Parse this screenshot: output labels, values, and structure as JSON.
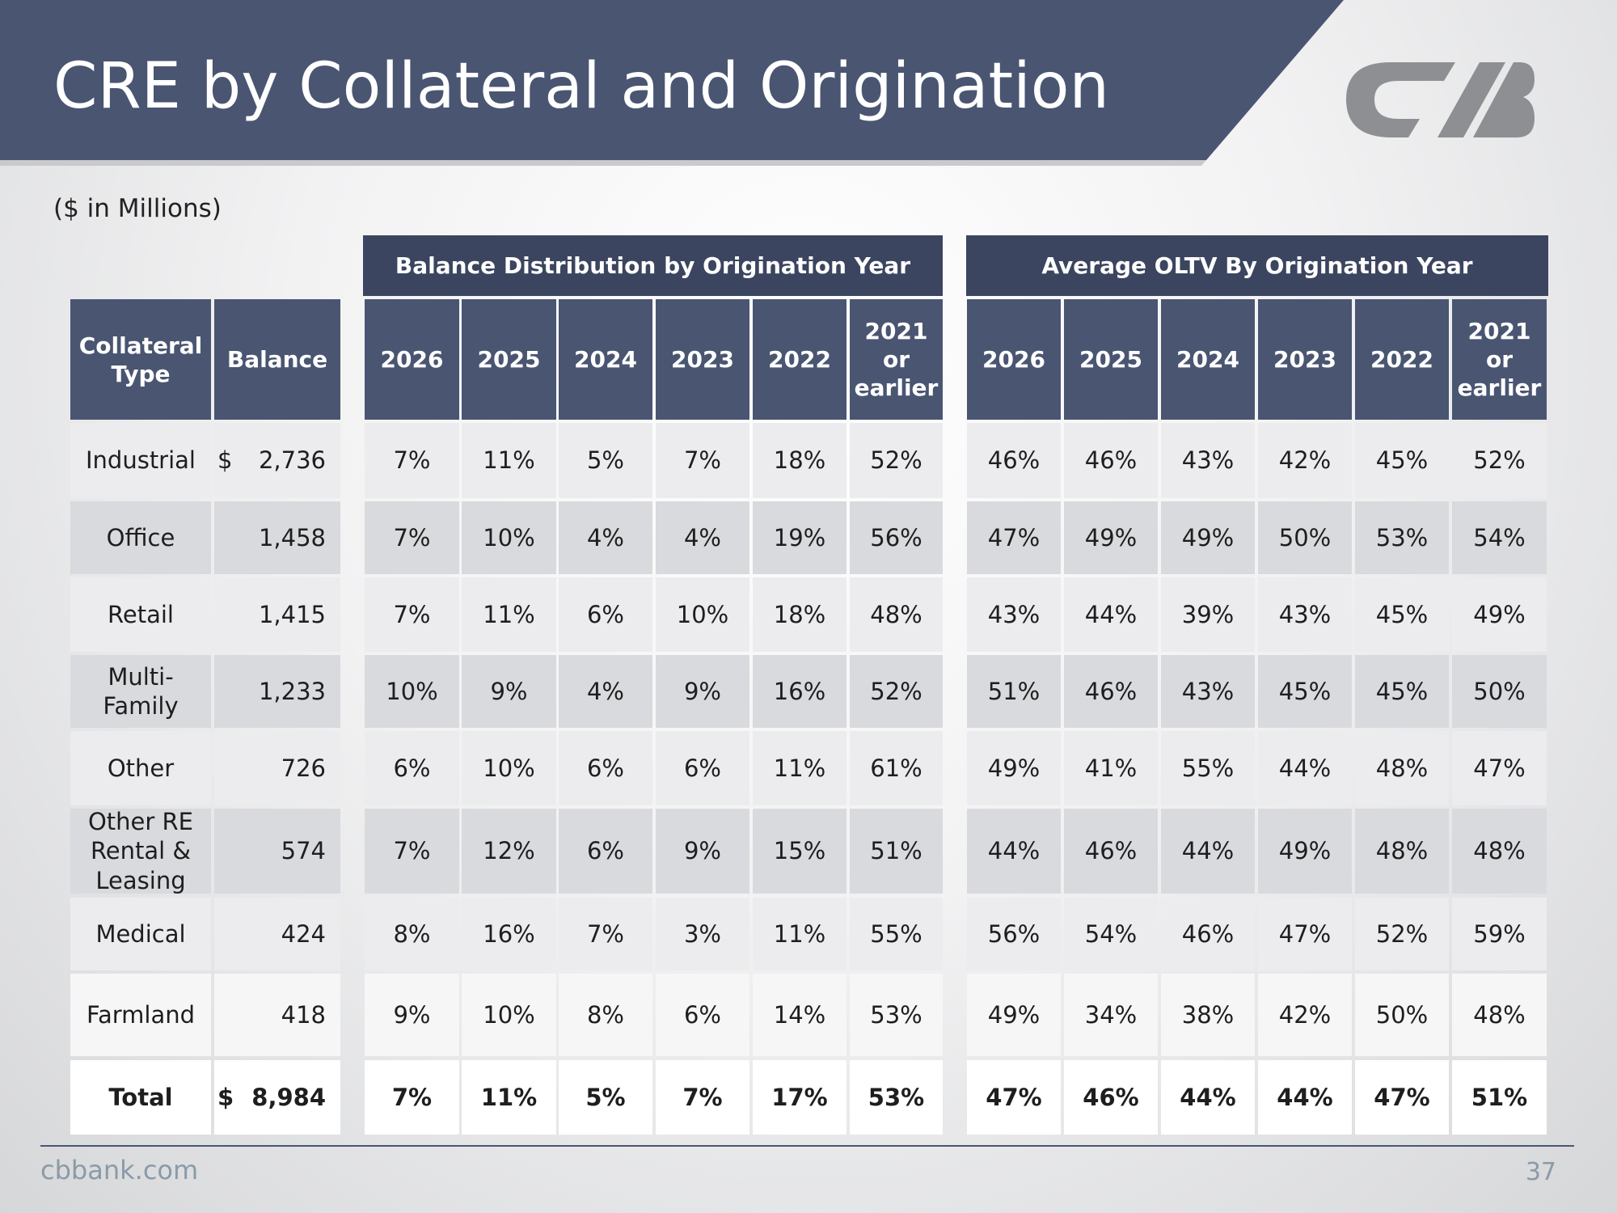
{
  "header": {
    "title": "CRE by Collateral and Origination",
    "subtitle": "($ in Millions)"
  },
  "table": {
    "group_headers": [
      "Balance Distribution by Origination Year",
      "Average OLTV By Origination Year"
    ],
    "columns": [
      "Collateral Type",
      "Balance"
    ],
    "distribution_columns": [
      "2026",
      "2025",
      "2024",
      "2023",
      "2022",
      "2021 or earlier"
    ],
    "oltv_columns": [
      "2026",
      "2025",
      "2024",
      "2023",
      "2022",
      "2021 or earlier"
    ],
    "rows": [
      {
        "type": "Industrial",
        "currency": "$",
        "balance": "2,736",
        "distribution": [
          "7%",
          "11%",
          "5%",
          "7%",
          "18%",
          "52%"
        ],
        "oltv": [
          "46%",
          "46%",
          "43%",
          "42%",
          "45%",
          "52%"
        ]
      },
      {
        "type": "Office",
        "balance": "1,458",
        "distribution": [
          "7%",
          "10%",
          "4%",
          "4%",
          "19%",
          "56%"
        ],
        "oltv": [
          "47%",
          "49%",
          "49%",
          "50%",
          "53%",
          "54%"
        ]
      },
      {
        "type": "Retail",
        "balance": "1,415",
        "distribution": [
          "7%",
          "11%",
          "6%",
          "10%",
          "18%",
          "48%"
        ],
        "oltv": [
          "43%",
          "44%",
          "39%",
          "43%",
          "45%",
          "49%"
        ]
      },
      {
        "type": "Multi-Family",
        "balance": "1,233",
        "distribution": [
          "10%",
          "9%",
          "4%",
          "9%",
          "16%",
          "52%"
        ],
        "oltv": [
          "51%",
          "46%",
          "43%",
          "45%",
          "45%",
          "50%"
        ]
      },
      {
        "type": "Other",
        "balance": "726",
        "distribution": [
          "6%",
          "10%",
          "6%",
          "6%",
          "11%",
          "61%"
        ],
        "oltv": [
          "49%",
          "41%",
          "55%",
          "44%",
          "48%",
          "47%"
        ]
      },
      {
        "type": "Other RE Rental & Leasing",
        "balance": "574",
        "distribution": [
          "7%",
          "12%",
          "6%",
          "9%",
          "15%",
          "51%"
        ],
        "oltv": [
          "44%",
          "46%",
          "44%",
          "49%",
          "48%",
          "48%"
        ]
      },
      {
        "type": "Medical",
        "balance": "424",
        "distribution": [
          "8%",
          "16%",
          "7%",
          "3%",
          "11%",
          "55%"
        ],
        "oltv": [
          "56%",
          "54%",
          "46%",
          "47%",
          "52%",
          "59%"
        ]
      },
      {
        "type": "Farmland",
        "balance": "418",
        "distribution": [
          "9%",
          "10%",
          "8%",
          "6%",
          "14%",
          "53%"
        ],
        "oltv": [
          "49%",
          "34%",
          "38%",
          "42%",
          "50%",
          "48%"
        ]
      },
      {
        "type": "Total",
        "currency": "$",
        "balance": "8,984",
        "distribution": [
          "7%",
          "11%",
          "5%",
          "7%",
          "17%",
          "53%"
        ],
        "oltv": [
          "47%",
          "46%",
          "44%",
          "44%",
          "47%",
          "51%"
        ]
      }
    ]
  },
  "footer": {
    "website": "cbbank.com",
    "page": "37"
  }
}
